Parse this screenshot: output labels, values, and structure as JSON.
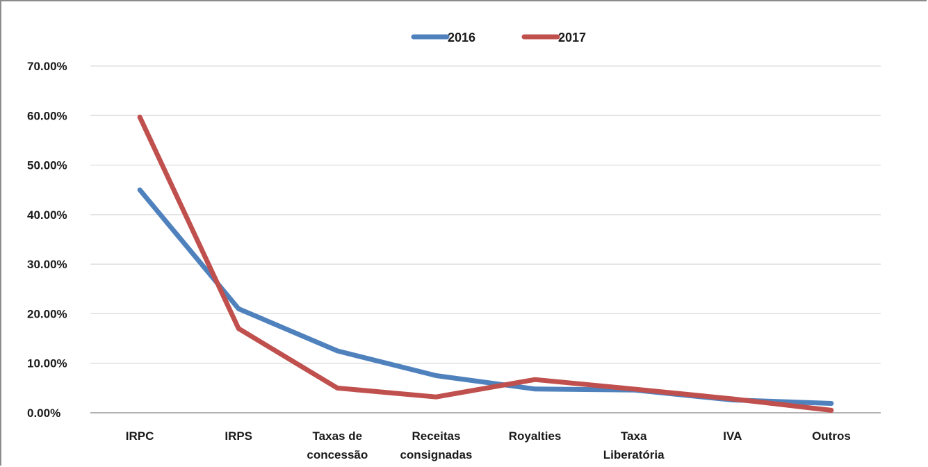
{
  "chart_data": {
    "type": "line",
    "title": "",
    "xlabel": "",
    "ylabel": "",
    "categories": [
      [
        "IRPC"
      ],
      [
        "IRPS"
      ],
      [
        "Taxas de",
        "concessão"
      ],
      [
        "Receitas",
        "consignadas"
      ],
      [
        "Royalties"
      ],
      [
        "Taxa",
        "Liberatória"
      ],
      [
        "IVA"
      ],
      [
        "Outros"
      ]
    ],
    "y_ticks": [
      "0.00%",
      "10.00%",
      "20.00%",
      "30.00%",
      "40.00%",
      "50.00%",
      "60.00%",
      "70.00%"
    ],
    "ylim": [
      0,
      70
    ],
    "grid": true,
    "legend_position": "top-center",
    "series": [
      {
        "name": "2016",
        "color": "#4f81bd",
        "values": [
          45.0,
          21.0,
          12.5,
          7.5,
          4.8,
          4.6,
          2.6,
          1.9
        ]
      },
      {
        "name": "2017",
        "color": "#c0504d",
        "values": [
          59.7,
          17.0,
          5.0,
          3.2,
          6.7,
          4.8,
          2.8,
          0.5
        ]
      }
    ]
  }
}
